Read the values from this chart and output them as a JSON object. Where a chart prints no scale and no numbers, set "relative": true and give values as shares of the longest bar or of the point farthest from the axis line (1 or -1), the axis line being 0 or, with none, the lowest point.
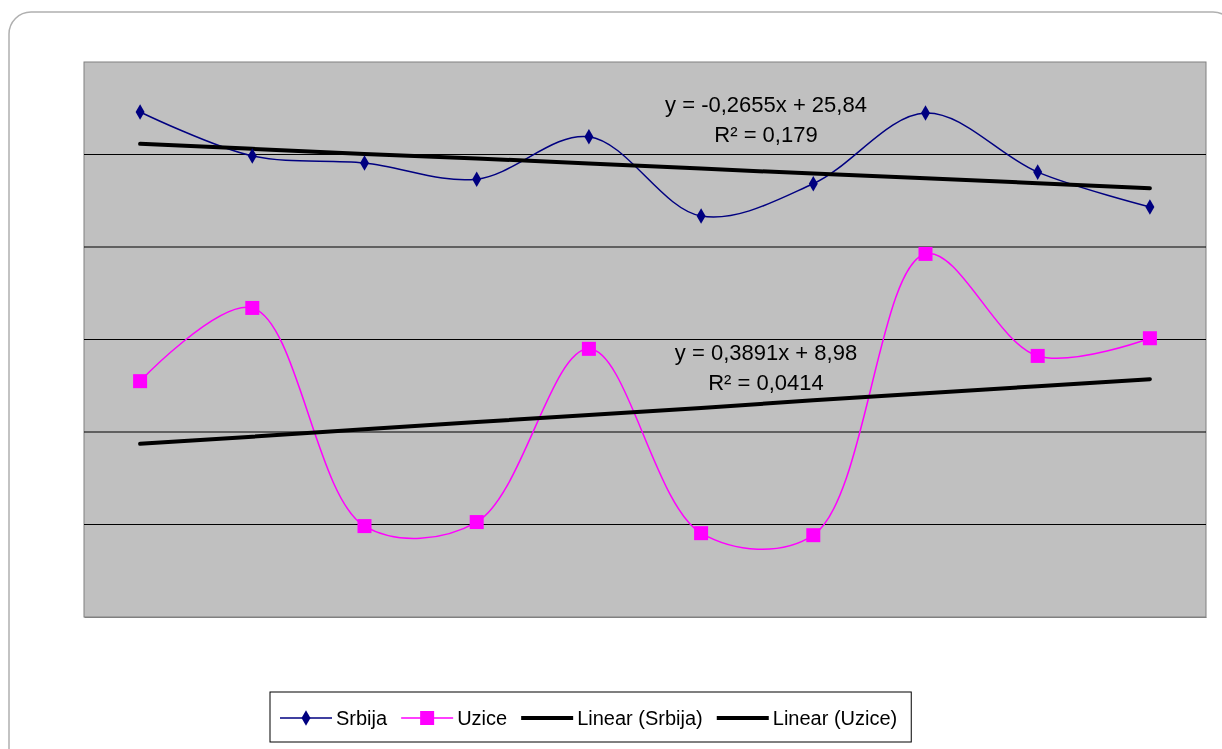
{
  "chart_data": {
    "type": "line",
    "relative": true,
    "grid": "y",
    "legend": "bottom",
    "categories": [
      null,
      null,
      null,
      null,
      null,
      null,
      null,
      null,
      null,
      null
    ],
    "series": [
      {
        "name": "Srbija",
        "color": "#000080",
        "marker": "diamond",
        "values": [
          1,
          0.913,
          0.899,
          0.867,
          0.951,
          0.794,
          0.858,
          0.998,
          0.881,
          0.812
        ]
      },
      {
        "name": "Uzice",
        "color": "#ff00ff",
        "marker": "square",
        "values": [
          0.467,
          0.612,
          0.18,
          0.188,
          0.531,
          0.166,
          0.162,
          0.719,
          0.517,
          0.552
        ]
      },
      {
        "name": "Linear (Srbija)",
        "color": "#000000",
        "marker": "none",
        "values": [
          0.937,
          0.927,
          0.917,
          0.908,
          0.898,
          0.888,
          0.878,
          0.869,
          0.859,
          0.849
        ]
      },
      {
        "name": "Linear (Uzice)",
        "color": "#000000",
        "marker": "none",
        "values": [
          0.343,
          0.357,
          0.372,
          0.386,
          0.4,
          0.414,
          0.429,
          0.443,
          0.457,
          0.471
        ]
      }
    ],
    "annotations": [
      "y = -0,2655x + 25,84",
      "R² = 0,179",
      "y = 0,3891x + 8,98",
      "R² = 0,0414"
    ]
  }
}
